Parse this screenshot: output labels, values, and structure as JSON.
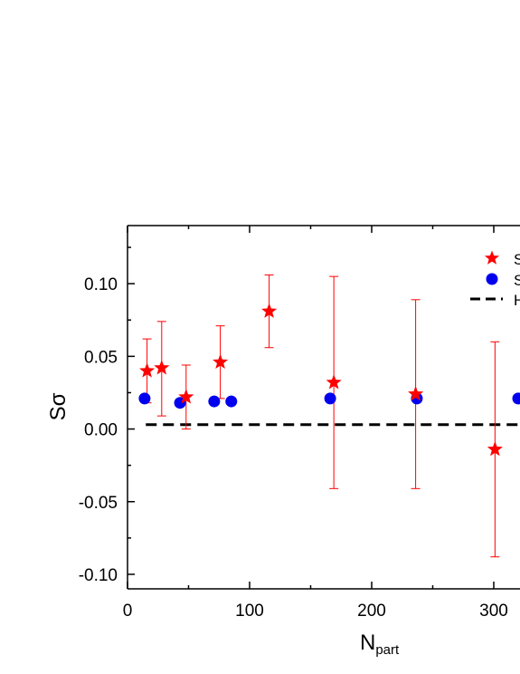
{
  "chart_data": {
    "type": "scatter",
    "title": "",
    "xlabel": "N",
    "xlabel_sub": "part",
    "ylabel": "Sσ",
    "xlim": [
      0,
      320
    ],
    "ylim": [
      -0.11,
      0.14
    ],
    "xticks": [
      0,
      100,
      200,
      300
    ],
    "xtick_labels": [
      "0",
      "100",
      "200",
      "300"
    ],
    "yticks": [
      -0.1,
      -0.05,
      0.0,
      0.05,
      0.1
    ],
    "ytick_labels": [
      "-0.10",
      "-0.05",
      "0.00",
      "0.05",
      "0.10"
    ],
    "grid": false,
    "legend_position": "top-right",
    "colors": {
      "star_series": "#ff0000",
      "circle_series": "#0000ee",
      "line_series": "#000000"
    },
    "series": [
      {
        "name": "S",
        "marker": "star",
        "x": [
          16,
          28,
          48,
          76,
          116,
          169,
          236,
          301
        ],
        "y": [
          0.04,
          0.042,
          0.022,
          0.046,
          0.081,
          0.032,
          0.024,
          -0.014
        ],
        "y_err_low": [
          0.022,
          0.033,
          0.022,
          0.025,
          0.025,
          0.073,
          0.065,
          0.074
        ],
        "y_err_high": [
          0.022,
          0.032,
          0.022,
          0.025,
          0.025,
          0.073,
          0.065,
          0.074
        ]
      },
      {
        "name": "S",
        "marker": "circle",
        "x": [
          14,
          43,
          71,
          85,
          166,
          237,
          320
        ],
        "y": [
          0.021,
          0.018,
          0.019,
          0.019,
          0.021,
          0.021,
          0.021
        ]
      },
      {
        "name": "H",
        "marker": "dashed-line",
        "x": [
          15,
          320
        ],
        "y": [
          0.003,
          0.003
        ]
      }
    ]
  }
}
